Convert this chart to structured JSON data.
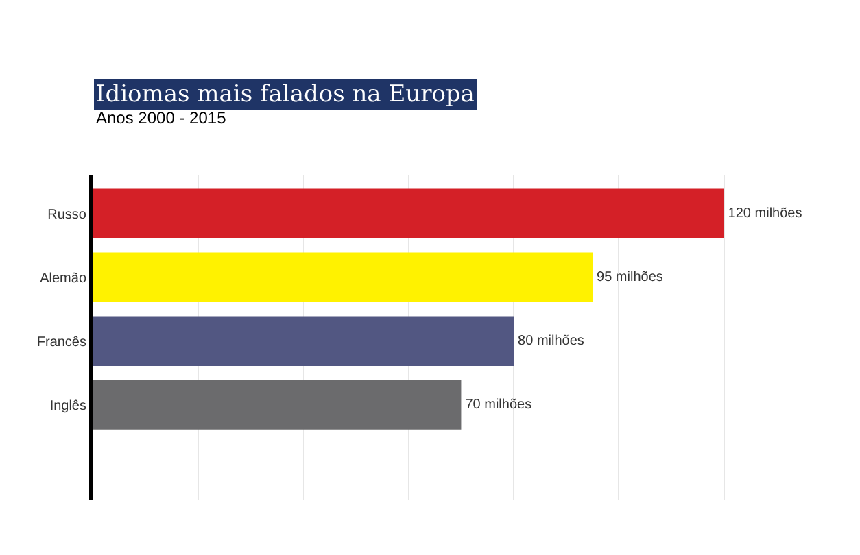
{
  "chart_data": {
    "type": "bar",
    "orientation": "horizontal",
    "title": "Idiomas mais falados na Europa",
    "subtitle": "Anos 2000 - 2015",
    "categories": [
      "Russo",
      "Alemão",
      "Francês",
      "Inglês"
    ],
    "values": [
      120,
      95,
      80,
      70
    ],
    "colors": [
      "#d42027",
      "#fff200",
      "#525782",
      "#6b6b6d"
    ],
    "value_labels": [
      "120 milhões",
      "95 milhões",
      "80 milhões",
      "70 milhões"
    ],
    "xticks": [
      {
        "value": 20,
        "label": null
      },
      {
        "value": 40,
        "label": null
      },
      {
        "value": 60,
        "label": null
      },
      {
        "value": 80,
        "label": null
      },
      {
        "value": 100,
        "label": null
      },
      {
        "value": 120,
        "label": null
      }
    ],
    "grid": "x",
    "tick_labels": "y",
    "legend": false
  }
}
